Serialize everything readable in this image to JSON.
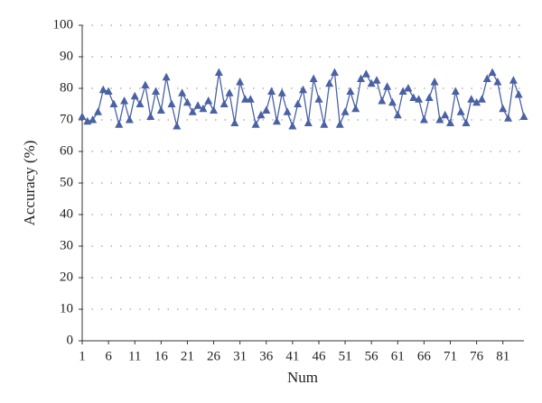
{
  "chart_data": {
    "type": "line",
    "xlabel": "Num",
    "ylabel": "Accuracy (%)",
    "x": [
      1,
      2,
      3,
      4,
      5,
      6,
      7,
      8,
      9,
      10,
      11,
      12,
      13,
      14,
      15,
      16,
      17,
      18,
      19,
      20,
      21,
      22,
      23,
      24,
      25,
      26,
      27,
      28,
      29,
      30,
      31,
      32,
      33,
      34,
      35,
      36,
      37,
      38,
      39,
      40,
      41,
      42,
      43,
      44,
      45,
      46,
      47,
      48,
      49,
      50,
      51,
      52,
      53,
      54,
      55,
      56,
      57,
      58,
      59,
      60,
      61,
      62,
      63,
      64,
      65,
      66,
      67,
      68,
      69,
      70,
      71,
      72,
      73,
      74,
      75,
      76,
      77,
      78,
      79,
      80,
      81,
      82,
      83,
      84,
      85
    ],
    "series": [
      {
        "color": "#4a62a4",
        "values": [
          71,
          69.5,
          70,
          72.5,
          79.5,
          79,
          75,
          68.5,
          76,
          70,
          77.5,
          75,
          81,
          71,
          79,
          73,
          83.5,
          75,
          68,
          78.5,
          75.5,
          72.5,
          74.5,
          73.5,
          76,
          73,
          85,
          75,
          78.5,
          69,
          82,
          76.5,
          76.5,
          68.5,
          71.5,
          73,
          79,
          69.5,
          78.5,
          72.5,
          68,
          75,
          79.5,
          69,
          83,
          76.5,
          68.5,
          81.5,
          85,
          68.5,
          72.5,
          79,
          73.5,
          83,
          84.5,
          81.5,
          82.5,
          76,
          80.5,
          75.5,
          71.5,
          79,
          80,
          77,
          76.5,
          70,
          77,
          82,
          70,
          71.5,
          69,
          79,
          72.5,
          69,
          76.5,
          75.5,
          76.5,
          83,
          85,
          82,
          73.5,
          70.5,
          82.5,
          78,
          71
        ]
      }
    ],
    "xlim": [
      1,
      85
    ],
    "xticks": [
      1,
      6,
      11,
      16,
      21,
      26,
      31,
      36,
      41,
      46,
      51,
      56,
      61,
      66,
      71,
      76,
      81
    ],
    "ylim": [
      0,
      100
    ],
    "yticks": [
      0,
      10,
      20,
      30,
      40,
      50,
      60,
      70,
      80,
      90,
      100
    ],
    "grid": true
  }
}
